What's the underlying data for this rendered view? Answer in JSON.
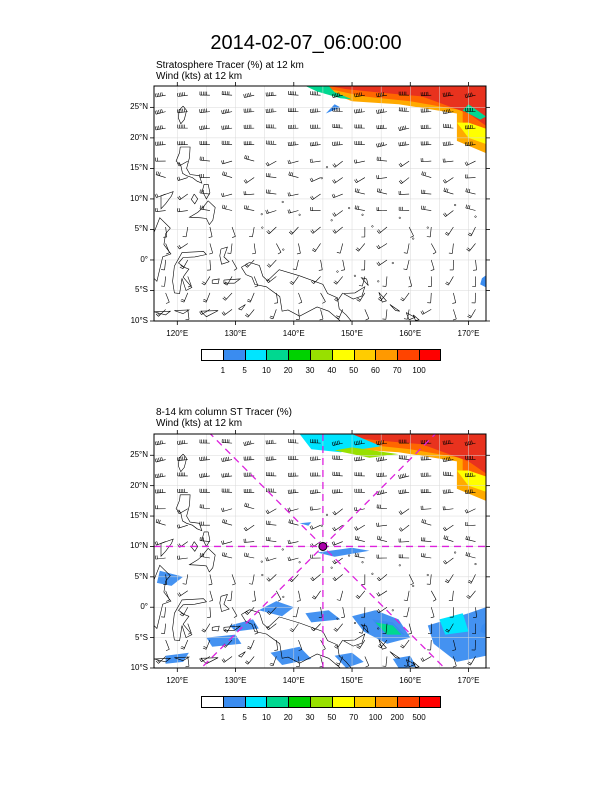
{
  "title": "2014-02-07_06:00:00",
  "panels": [
    {
      "id": "top",
      "line1": "Stratosphere Tracer   (%)     at   12 km",
      "line2": "Wind   (kts)     at  12 km",
      "lat_labels": [
        "25°N",
        "20°N",
        "15°N",
        "10°N",
        "5°N",
        "0°",
        "5°S",
        "10°S"
      ],
      "lon_labels": [
        "120°E",
        "130°E",
        "140°E",
        "150°E",
        "160°E",
        "170°E"
      ],
      "colorbar": {
        "colors": [
          "#ffffff",
          "#3a8cf0",
          "#00e5ff",
          "#00d890",
          "#00d200",
          "#98e000",
          "#ffff00",
          "#ffcc00",
          "#ff9900",
          "#ff4400",
          "#ff0000"
        ],
        "labels": [
          "1",
          "5",
          "10",
          "20",
          "30",
          "40",
          "50",
          "60",
          "70",
          "100"
        ]
      },
      "has_crosshair": false
    },
    {
      "id": "bottom",
      "line1": "8-14 km column ST Tracer   (%)",
      "line2": "Wind   (kts)     at  12 km",
      "lat_labels": [
        "25°N",
        "20°N",
        "15°N",
        "10°N",
        "5°N",
        "0°",
        "5°S",
        "10°S"
      ],
      "lon_labels": [
        "120°E",
        "130°E",
        "140°E",
        "150°E",
        "160°E",
        "170°E"
      ],
      "colorbar": {
        "colors": [
          "#ffffff",
          "#3a8cf0",
          "#00e5ff",
          "#00d890",
          "#00d200",
          "#98e000",
          "#ffff00",
          "#ffcc00",
          "#ff9900",
          "#ff4400",
          "#ff0000"
        ],
        "labels": [
          "1",
          "5",
          "10",
          "20",
          "30",
          "50",
          "70",
          "100",
          "200",
          "500"
        ]
      },
      "has_crosshair": true
    }
  ],
  "map": {
    "lon_range": [
      116,
      173
    ],
    "lat_range": [
      -10,
      28.5
    ],
    "grid_interval_deg": 5,
    "center_marker": {
      "lon": 145,
      "lat": 10
    },
    "crosshair_color": "#dd22dd"
  }
}
